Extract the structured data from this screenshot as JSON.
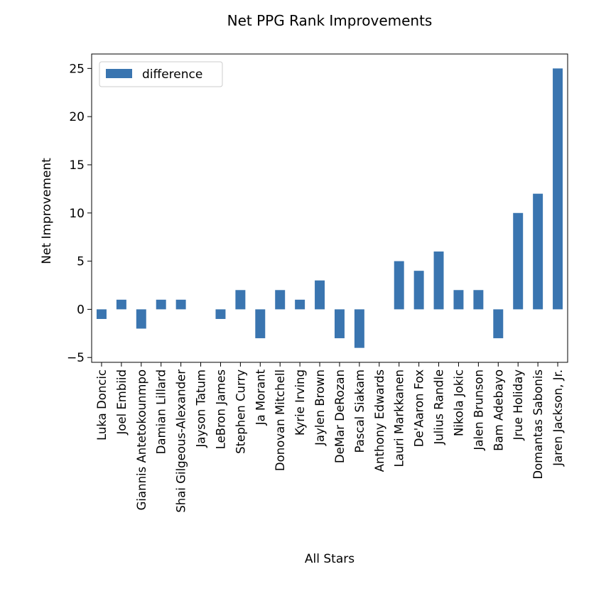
{
  "chart_data": {
    "type": "bar",
    "title": "Net PPG Rank Improvements",
    "xlabel": "All Stars",
    "ylabel": "Net Improvement",
    "ylim": [
      -5.5,
      26.5
    ],
    "yticks": [
      -5,
      0,
      5,
      10,
      15,
      20,
      25
    ],
    "grid": false,
    "legend_position": "top-left",
    "categories": [
      "Luka Doncic",
      "Joel Embiid",
      "Giannis Antetokounmpo",
      "Damian Lillard",
      "Shai Gilgeous-Alexander",
      "Jayson Tatum",
      "LeBron James",
      "Stephen Curry",
      "Ja Morant",
      "Donovan Mitchell",
      "Kyrie Irving",
      "Jaylen Brown",
      "DeMar DeRozan",
      "Pascal Siakam",
      "Anthony Edwards",
      "Lauri Markkanen",
      "De'Aaron Fox",
      "Julius Randle",
      "Nikola Jokic",
      "Jalen Brunson",
      "Bam Adebayo",
      "Jrue Holiday",
      "Domantas Sabonis",
      "Jaren Jackson, Jr."
    ],
    "series": [
      {
        "name": "difference",
        "color": "#3a75b0",
        "values": [
          -1,
          1,
          -2,
          1,
          1,
          0,
          -1,
          2,
          -3,
          2,
          1,
          3,
          -3,
          -4,
          0,
          5,
          4,
          6,
          2,
          2,
          -3,
          10,
          12,
          25
        ]
      }
    ]
  }
}
